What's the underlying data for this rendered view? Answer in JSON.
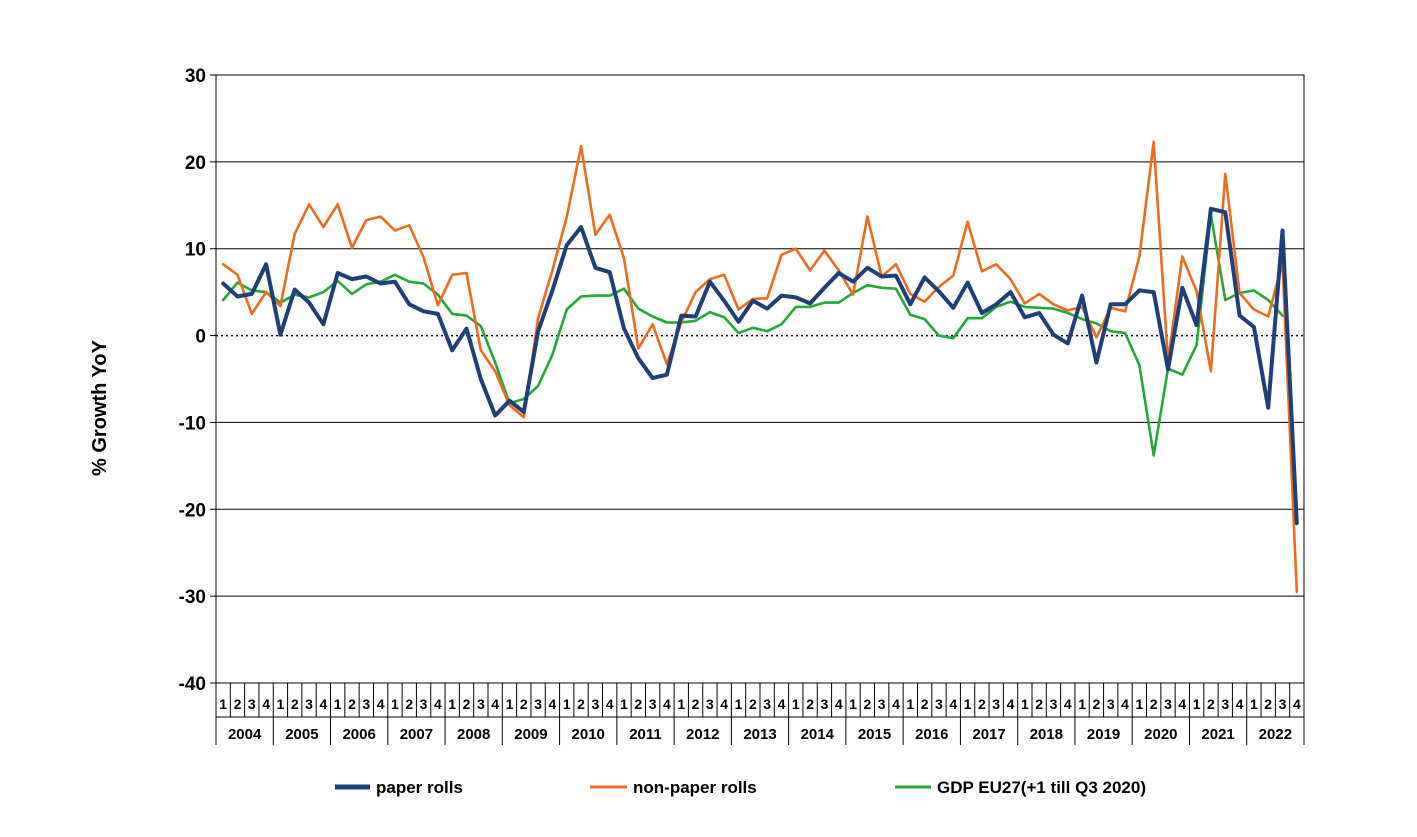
{
  "chart_data": {
    "type": "line",
    "ylabel": "% Growth YoY",
    "ylim": [
      -40,
      30
    ],
    "yticks": [
      30,
      20,
      10,
      0,
      -10,
      -20,
      -30,
      -40
    ],
    "quarter_labels": [
      "1",
      "2",
      "3",
      "4"
    ],
    "years": [
      "2004",
      "2005",
      "2006",
      "2007",
      "2008",
      "2009",
      "2010",
      "2011",
      "2012",
      "2013",
      "2014",
      "2015",
      "2016",
      "2017",
      "2018",
      "2019",
      "2020",
      "2021",
      "2022"
    ],
    "grid": true,
    "legend_position": "bottom",
    "series": [
      {
        "name": "paper rolls",
        "color": "#1f3f78",
        "values": [
          6.0,
          4.5,
          4.8,
          8.2,
          0.1,
          5.3,
          3.8,
          1.3,
          7.2,
          6.5,
          6.8,
          6.0,
          6.2,
          3.6,
          2.8,
          2.5,
          -1.7,
          0.8,
          -5.0,
          -9.2,
          -7.5,
          -8.8,
          0.5,
          5.2,
          10.4,
          12.5,
          7.8,
          7.3,
          0.8,
          -2.6,
          -4.9,
          -4.5,
          2.3,
          2.2,
          6.2,
          4.0,
          1.6,
          4.0,
          3.1,
          4.6,
          4.4,
          3.7,
          5.5,
          7.2,
          6.2,
          7.8,
          6.8,
          6.9,
          3.6,
          6.7,
          5.1,
          3.2,
          6.1,
          2.6,
          3.6,
          5.0,
          2.1,
          2.6,
          0.1,
          -0.9,
          4.6,
          -3.1,
          3.6,
          3.6,
          5.2,
          5.0,
          -3.9,
          5.5,
          1.2,
          14.6,
          14.2,
          2.3,
          1.0,
          -8.3,
          12.1,
          -21.6
        ]
      },
      {
        "name": "non-paper rolls",
        "color": "#e96c1f",
        "values": [
          8.2,
          7.0,
          2.5,
          5.0,
          3.4,
          11.7,
          15.1,
          12.5,
          15.1,
          10.1,
          13.3,
          13.7,
          12.1,
          12.7,
          9.0,
          3.5,
          7.0,
          7.2,
          -1.7,
          -4.1,
          -8.0,
          -9.4,
          2.0,
          7.5,
          13.6,
          21.8,
          11.6,
          13.9,
          8.9,
          -1.5,
          1.3,
          -3.3,
          1.5,
          5.0,
          6.5,
          7.0,
          3.0,
          4.2,
          4.3,
          9.3,
          10.0,
          7.5,
          9.8,
          7.5,
          4.7,
          13.7,
          6.8,
          8.2,
          4.8,
          3.9,
          5.6,
          6.9,
          13.1,
          7.4,
          8.2,
          6.5,
          3.7,
          4.8,
          3.6,
          2.9,
          3.3,
          -0.2,
          3.2,
          2.8,
          9.1,
          22.3,
          -3.0,
          9.1,
          5.1,
          -4.1,
          18.6,
          4.9,
          3.0,
          2.2,
          8.4,
          -29.5
        ]
      },
      {
        "name": "GDP EU27(+1 till Q3 2020)",
        "color": "#23a838",
        "values": [
          4.1,
          6.1,
          5.2,
          5.0,
          3.8,
          4.7,
          4.4,
          5.0,
          6.3,
          4.8,
          5.9,
          6.2,
          7.0,
          6.2,
          6.0,
          4.7,
          2.5,
          2.3,
          1.1,
          -3.1,
          -7.8,
          -7.3,
          -5.8,
          -2.2,
          3.0,
          4.5,
          4.6,
          4.6,
          5.4,
          3.1,
          2.2,
          1.5,
          1.5,
          1.7,
          2.7,
          2.1,
          0.3,
          0.9,
          0.5,
          1.3,
          3.3,
          3.3,
          3.8,
          3.8,
          4.9,
          5.8,
          5.5,
          5.4,
          2.4,
          1.9,
          0.0,
          -0.3,
          2.0,
          2.0,
          3.3,
          3.9,
          3.3,
          3.2,
          3.1,
          2.6,
          1.9,
          1.4,
          0.5,
          0.3,
          -3.4,
          -13.8,
          -3.8,
          -4.5,
          -1.1,
          13.9,
          4.1,
          4.9,
          5.2,
          4.1,
          2.3
        ]
      }
    ]
  }
}
